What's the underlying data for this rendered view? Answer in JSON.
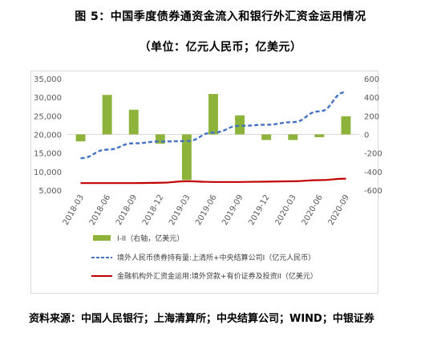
{
  "figure": {
    "title": "图 5：中国季度债券通资金流入和银行外汇资金运用情况",
    "subtitle": "（单位：亿元人民币；亿美元）",
    "source": "资料来源：中国人民银行；上海清算所；中央结算公司；WIND；中银证券"
  },
  "chart_data": {
    "type": "bar",
    "categories": [
      "2018-03",
      "2018-06",
      "2018-09",
      "2018-12",
      "2019-03",
      "2019-06",
      "2019-09",
      "2019-12",
      "2020-03",
      "2020-06",
      "2020-09"
    ],
    "y_left": {
      "ylim": [
        5000,
        35000
      ],
      "ticks": [
        "5,000",
        "10,000",
        "15,000",
        "20,000",
        "25,000",
        "30,000",
        "35,000"
      ],
      "tick_values": [
        5000,
        10000,
        15000,
        20000,
        25000,
        30000,
        35000
      ]
    },
    "y_right": {
      "ylim": [
        -600,
        600
      ],
      "ticks": [
        "-600",
        "-400",
        "-200",
        "0",
        "200",
        "400",
        "600"
      ],
      "tick_values": [
        -600,
        -400,
        -200,
        0,
        200,
        400,
        600
      ]
    },
    "grid": false,
    "legend_position": "bottom",
    "series": [
      {
        "name": "I-II（右轴，亿美元）",
        "kind": "bar",
        "axis": "right",
        "color": "#8db33a",
        "values": [
          -75,
          425,
          265,
          -100,
          -490,
          435,
          205,
          -60,
          -60,
          -30,
          195
        ]
      },
      {
        "name": "境外人民币债券持有量:上清所+中央结算公司I（亿元人民币）",
        "kind": "line",
        "style": "dashed",
        "axis": "left",
        "color": "#4472c4",
        "values": [
          13600,
          15900,
          17600,
          18100,
          18200,
          20500,
          22300,
          22600,
          23300,
          26200,
          31400
        ]
      },
      {
        "name": "金融机构外汇资金运用:境外贷款+有价证券及投资II（亿美元）",
        "kind": "line",
        "style": "solid",
        "axis": "left",
        "color": "#c00000",
        "values": [
          6900,
          6900,
          6900,
          7000,
          7400,
          7200,
          7200,
          7300,
          7400,
          7700,
          8100
        ]
      }
    ]
  }
}
